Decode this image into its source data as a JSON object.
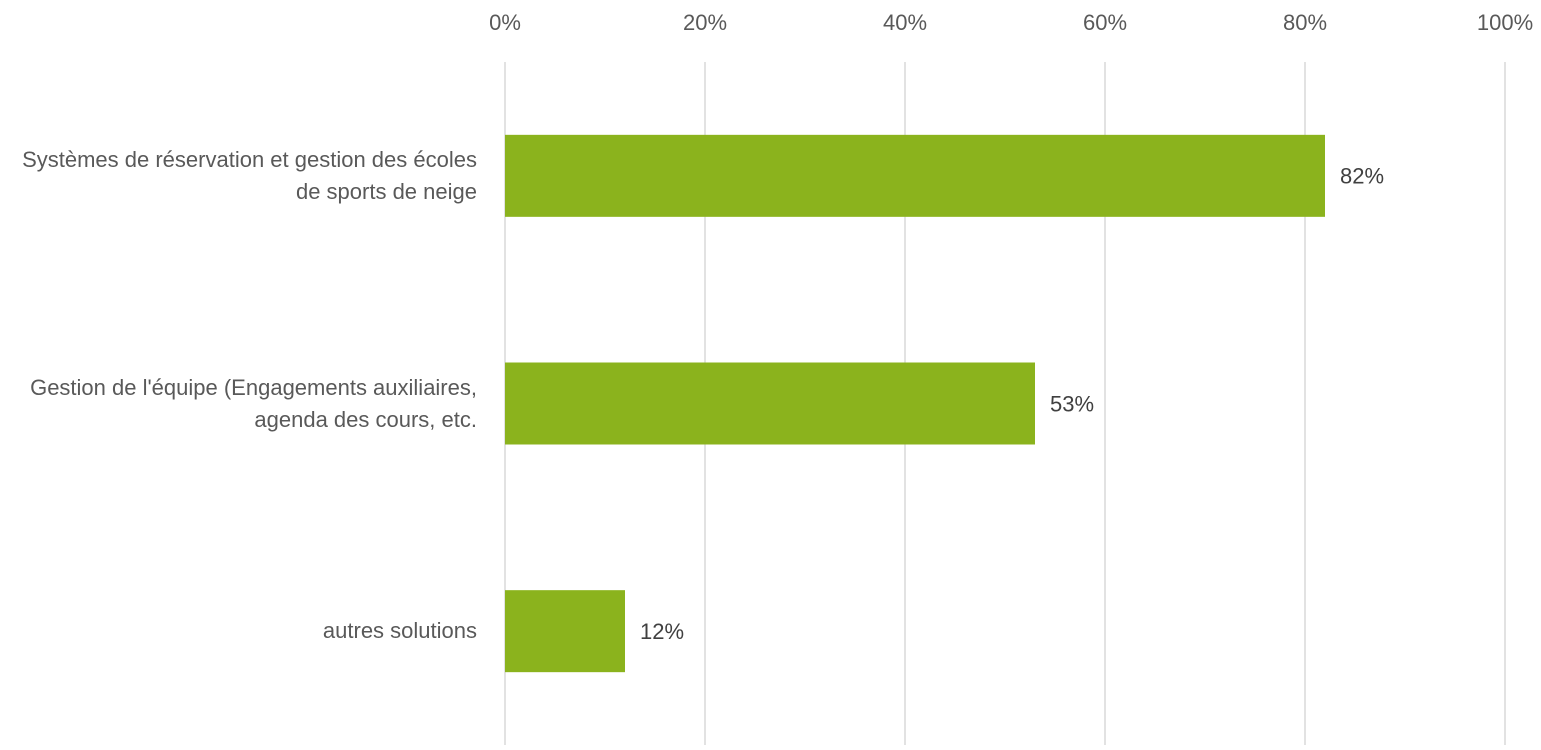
{
  "chart_data": {
    "type": "bar",
    "orientation": "horizontal",
    "categories": [
      "Systèmes de réservation et gestion des écoles de sports de neige",
      "Gestion de l'équipe (Engagements auxiliaires, agenda des cours, etc.",
      "autres solutions"
    ],
    "values": [
      82,
      53,
      12
    ],
    "value_labels": [
      "82%",
      "53%",
      "12%"
    ],
    "color": "#8bb31d",
    "xlim": [
      0,
      100
    ],
    "xticks": [
      {
        "value": 0,
        "label": "0%"
      },
      {
        "value": 20,
        "label": "20%"
      },
      {
        "value": 40,
        "label": "40%"
      },
      {
        "value": 60,
        "label": "60%"
      },
      {
        "value": 80,
        "label": "80%"
      },
      {
        "value": 100,
        "label": "100%"
      }
    ],
    "grid": true
  }
}
